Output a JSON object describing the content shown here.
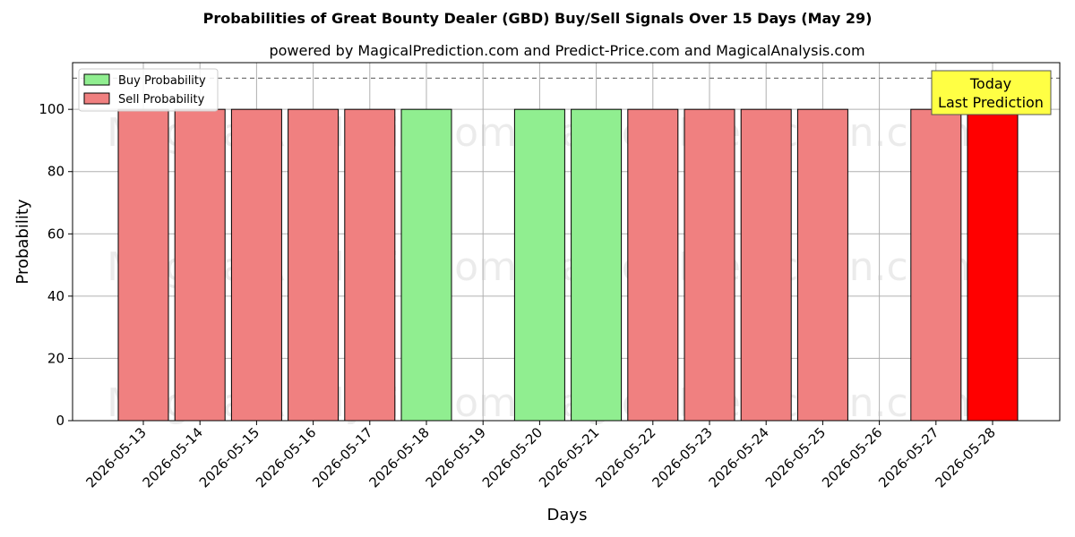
{
  "chart_data": {
    "type": "bar",
    "title": "Probabilities of Great Bounty Dealer (GBD) Buy/Sell Signals Over 15 Days (May 29)",
    "subtitle": "powered by MagicalPrediction.com and Predict-Price.com and MagicalAnalysis.com",
    "xlabel": "Days",
    "ylabel": "Probability",
    "ylim": [
      0,
      115
    ],
    "yticks": [
      0,
      20,
      40,
      60,
      80,
      100
    ],
    "threshold_line": 110,
    "grid": true,
    "legend_position": "top-left",
    "categories": [
      "2026-05-13",
      "2026-05-14",
      "2026-05-15",
      "2026-05-16",
      "2026-05-17",
      "2026-05-18",
      "2026-05-19",
      "2026-05-20",
      "2026-05-21",
      "2026-05-22",
      "2026-05-23",
      "2026-05-24",
      "2026-05-25",
      "2026-05-26",
      "2026-05-27",
      "2026-05-28"
    ],
    "series": [
      {
        "name": "Buy Probability",
        "color": "#90ee90",
        "values": [
          0,
          0,
          0,
          0,
          0,
          100,
          0,
          100,
          100,
          0,
          0,
          0,
          0,
          0,
          0,
          0
        ]
      },
      {
        "name": "Sell Probability",
        "color": "#f08080",
        "values": [
          100,
          100,
          100,
          100,
          100,
          0,
          0,
          0,
          0,
          100,
          100,
          100,
          100,
          0,
          100,
          100
        ]
      }
    ],
    "highlight": {
      "category": "2026-05-28",
      "color": "#ff0000"
    },
    "annotation": {
      "line1": "Today",
      "line2": "Last Prediction",
      "color": "#ffff44"
    },
    "watermarks": [
      "MagicalAnalysis.com",
      "MagicalPrediction.com"
    ]
  }
}
